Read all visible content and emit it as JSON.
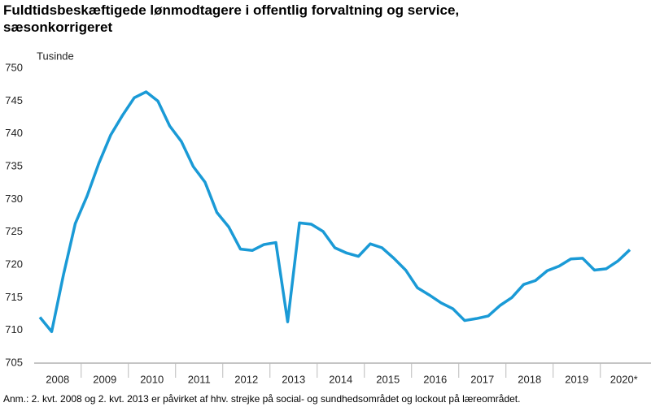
{
  "chart_data": {
    "type": "line",
    "title": "Fuldtidsbeskæftigede lønmodtagere i offentlig forvaltning og service, sæsonkorrigeret",
    "y_label": "Tusinde",
    "note": "Anm.: 2. kvt. 2008 og 2. kvt. 2013 er påvirket af hhv. strejke på social- og sundhedsområdet og lockout på læreområdet.",
    "categories": [
      null,
      "2008",
      null,
      null,
      null,
      "2009",
      null,
      null,
      null,
      "2010",
      null,
      null,
      null,
      "2011",
      null,
      null,
      null,
      "2012",
      null,
      null,
      null,
      "2013",
      null,
      null,
      null,
      "2014",
      null,
      null,
      null,
      "2015",
      null,
      null,
      null,
      "2016",
      null,
      null,
      null,
      "2017",
      null,
      null,
      null,
      "2018",
      null,
      null,
      null,
      "2019",
      null,
      null,
      null,
      "2020*",
      null
    ],
    "series": [
      {
        "name": "Tusinde",
        "color": "#1a9ad6",
        "values": [
          712,
          709.8,
          718.5,
          726.3,
          730.5,
          735.5,
          739.8,
          742.8,
          745.5,
          746.4,
          745,
          741.2,
          738.8,
          735,
          732.6,
          728,
          725.8,
          722.4,
          722.2,
          723.1,
          723.4,
          711.3,
          726.4,
          726.2,
          725.1,
          722.6,
          721.8,
          721.3,
          723.2,
          722.6,
          721,
          719.2,
          716.5,
          715.4,
          714.2,
          713.3,
          711.5,
          711.8,
          712.2,
          713.8,
          715,
          717,
          717.6,
          719.1,
          719.8,
          720.9,
          721,
          719.2,
          719.4,
          720.6,
          722.3
        ]
      }
    ],
    "ylim": [
      705,
      750
    ],
    "yticks": [
      705,
      710,
      715,
      720,
      725,
      730,
      735,
      740,
      745,
      750
    ],
    "grid": false
  }
}
